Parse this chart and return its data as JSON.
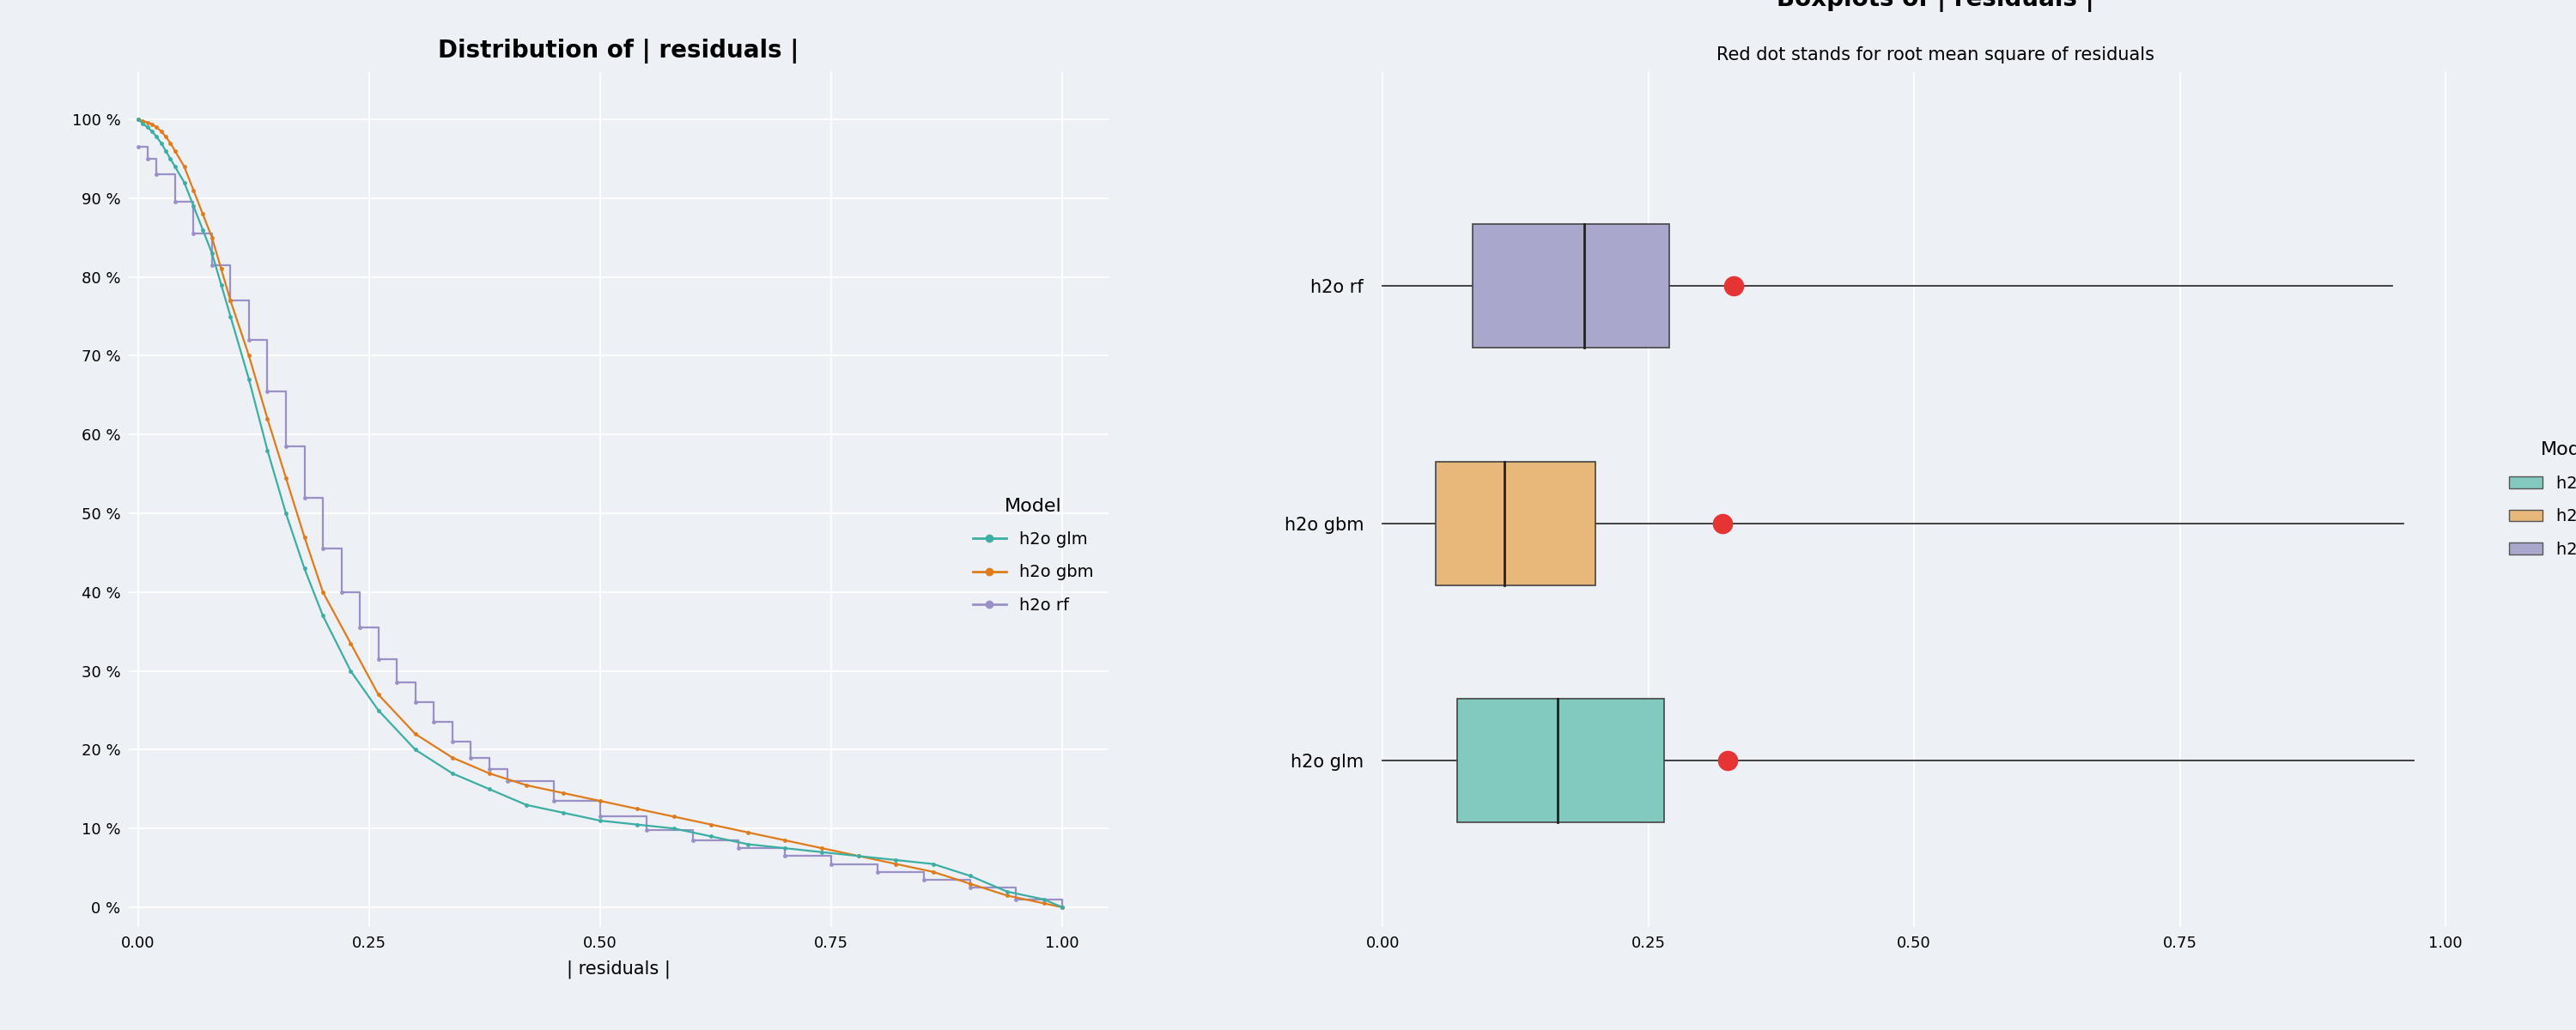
{
  "left_title": "Distribution of | residuals |",
  "right_title": "Boxplots of | residuals |",
  "right_subtitle": "Red dot stands for root mean square of residuals",
  "xlabel_left": "| residuals |",
  "background_color": "#edf0f5",
  "models": [
    "h2o glm",
    "h2o gbm",
    "h2o rf"
  ],
  "line_colors": {
    "h2o glm": "#3caea3",
    "h2o gbm": "#e07b1a",
    "h2o rf": "#9b8fc7"
  },
  "box_colors": {
    "h2o glm": "#82c9c0",
    "h2o gbm": "#e8b87a",
    "h2o rf": "#a9a8cc"
  },
  "ecdf_glm_x": [
    0.0,
    0.005,
    0.01,
    0.015,
    0.02,
    0.025,
    0.03,
    0.035,
    0.04,
    0.05,
    0.06,
    0.07,
    0.08,
    0.09,
    0.1,
    0.12,
    0.14,
    0.16,
    0.18,
    0.2,
    0.23,
    0.26,
    0.3,
    0.34,
    0.38,
    0.42,
    0.46,
    0.5,
    0.54,
    0.58,
    0.62,
    0.66,
    0.7,
    0.74,
    0.78,
    0.82,
    0.86,
    0.9,
    0.94,
    0.98,
    1.0
  ],
  "ecdf_glm_y": [
    1.0,
    0.995,
    0.99,
    0.985,
    0.978,
    0.97,
    0.96,
    0.95,
    0.94,
    0.92,
    0.89,
    0.86,
    0.83,
    0.79,
    0.75,
    0.67,
    0.58,
    0.5,
    0.43,
    0.37,
    0.3,
    0.25,
    0.2,
    0.17,
    0.15,
    0.13,
    0.12,
    0.11,
    0.105,
    0.1,
    0.09,
    0.08,
    0.075,
    0.07,
    0.065,
    0.06,
    0.055,
    0.04,
    0.02,
    0.01,
    0.0
  ],
  "ecdf_gbm_x": [
    0.0,
    0.005,
    0.01,
    0.015,
    0.02,
    0.025,
    0.03,
    0.035,
    0.04,
    0.05,
    0.06,
    0.07,
    0.08,
    0.09,
    0.1,
    0.12,
    0.14,
    0.16,
    0.18,
    0.2,
    0.23,
    0.26,
    0.3,
    0.34,
    0.38,
    0.42,
    0.46,
    0.5,
    0.54,
    0.58,
    0.62,
    0.66,
    0.7,
    0.74,
    0.78,
    0.82,
    0.86,
    0.9,
    0.94,
    0.98,
    1.0
  ],
  "ecdf_gbm_y": [
    1.0,
    0.998,
    0.996,
    0.994,
    0.99,
    0.985,
    0.978,
    0.97,
    0.96,
    0.94,
    0.91,
    0.88,
    0.85,
    0.81,
    0.77,
    0.7,
    0.62,
    0.545,
    0.47,
    0.4,
    0.335,
    0.27,
    0.22,
    0.19,
    0.17,
    0.155,
    0.145,
    0.135,
    0.125,
    0.115,
    0.105,
    0.095,
    0.085,
    0.075,
    0.065,
    0.055,
    0.045,
    0.03,
    0.015,
    0.005,
    0.0
  ],
  "ecdf_rf_x": [
    0.0,
    0.01,
    0.02,
    0.04,
    0.06,
    0.08,
    0.1,
    0.12,
    0.14,
    0.16,
    0.18,
    0.2,
    0.22,
    0.24,
    0.26,
    0.28,
    0.3,
    0.32,
    0.34,
    0.36,
    0.38,
    0.4,
    0.45,
    0.5,
    0.55,
    0.6,
    0.65,
    0.7,
    0.75,
    0.8,
    0.85,
    0.9,
    0.95,
    1.0
  ],
  "ecdf_rf_y": [
    0.965,
    0.95,
    0.93,
    0.895,
    0.855,
    0.815,
    0.77,
    0.72,
    0.655,
    0.585,
    0.52,
    0.455,
    0.4,
    0.355,
    0.315,
    0.285,
    0.26,
    0.235,
    0.21,
    0.19,
    0.175,
    0.16,
    0.135,
    0.115,
    0.098,
    0.085,
    0.075,
    0.065,
    0.055,
    0.045,
    0.035,
    0.025,
    0.01,
    0.0
  ],
  "box_rf": {
    "q1": 0.085,
    "median": 0.19,
    "q3": 0.27,
    "whisker_low": 0.0,
    "whisker_high": 0.95,
    "rmse": 0.33
  },
  "box_gbm": {
    "q1": 0.05,
    "median": 0.115,
    "q3": 0.2,
    "whisker_low": 0.0,
    "whisker_high": 0.96,
    "rmse": 0.32
  },
  "box_glm": {
    "q1": 0.07,
    "median": 0.165,
    "q3": 0.265,
    "whisker_low": 0.0,
    "whisker_high": 0.97,
    "rmse": 0.325
  },
  "yticks_left": [
    0,
    0.1,
    0.2,
    0.3,
    0.4,
    0.5,
    0.6,
    0.7,
    0.8,
    0.9,
    1.0
  ],
  "ytick_labels_left": [
    "0 %",
    "10 %",
    "20 %",
    "30 %",
    "40 %",
    "50 %",
    "60 %",
    "70 %",
    "80 %",
    "90 %",
    "100 %"
  ],
  "xticks": [
    0.0,
    0.25,
    0.5,
    0.75,
    1.0
  ],
  "xtick_labels": [
    "0.00",
    "0.25",
    "0.50",
    "0.75",
    "1.00"
  ]
}
